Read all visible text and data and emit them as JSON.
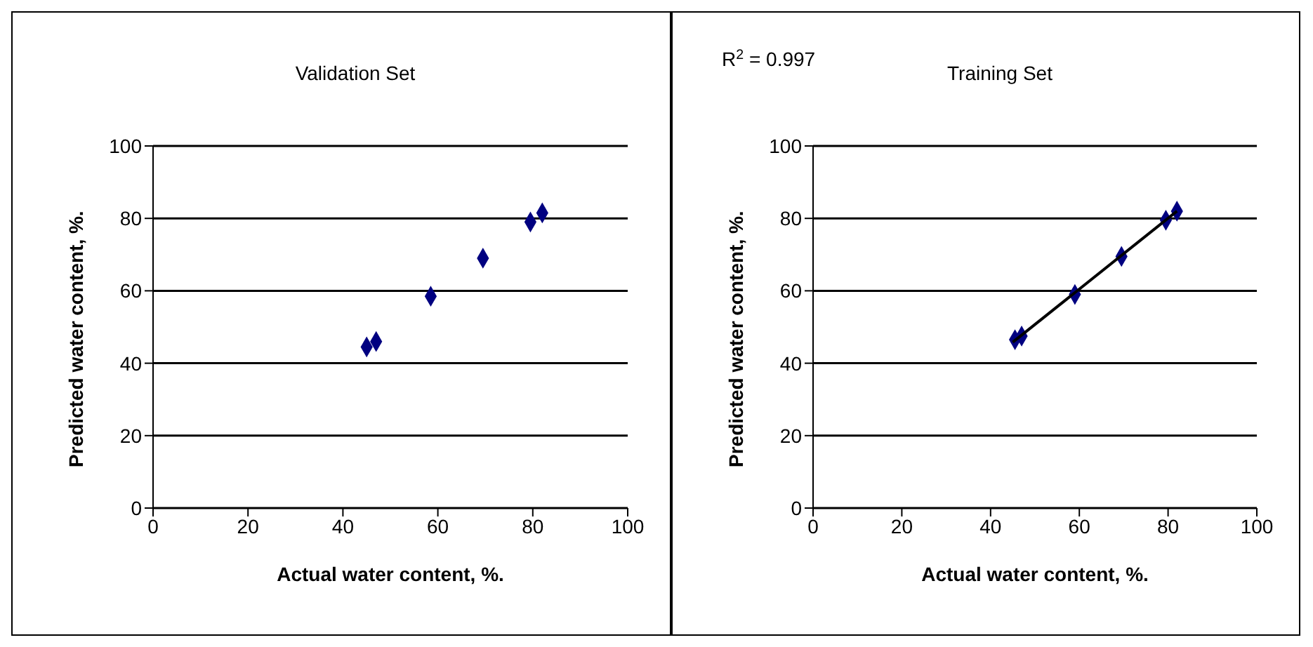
{
  "chart_data": [
    {
      "type": "scatter",
      "title": "Validation Set",
      "xlabel": "Actual water content, %.",
      "ylabel": "Predicted water content, %.",
      "xlim": [
        0,
        100
      ],
      "xticks": [
        0,
        20,
        40,
        60,
        80,
        100
      ],
      "ylim": [
        0,
        100
      ],
      "yticks": [
        0,
        20,
        40,
        60,
        80,
        100
      ],
      "grid": "y",
      "marker": "diamond",
      "series": [
        {
          "color": "#000080",
          "x": [
            45,
            47,
            58.5,
            69.5,
            79.5,
            82
          ],
          "values": [
            44.5,
            46,
            58.5,
            69,
            79,
            81.5
          ]
        }
      ]
    },
    {
      "type": "scatter",
      "title": "Training Set",
      "annotations": [
        "R$^{2}$ = 0.997"
      ],
      "xlabel": "Actual water content, %.",
      "ylabel": "Predicted water content, %.",
      "xlim": [
        0,
        100
      ],
      "xticks": [
        0,
        20,
        40,
        60,
        80,
        100
      ],
      "ylim": [
        0,
        100
      ],
      "yticks": [
        0,
        20,
        40,
        60,
        80,
        100
      ],
      "grid": "y",
      "series": [
        {
          "color": "#000080",
          "marker": "diamond",
          "x": [
            45.5,
            47,
            59,
            69.5,
            79.5,
            82
          ],
          "values": [
            46.5,
            47.5,
            59,
            69.5,
            79.5,
            82
          ]
        },
        {
          "type": "line",
          "marker": "none",
          "color": "#000000",
          "x": [
            45,
            82
          ],
          "values": [
            45.8,
            82
          ]
        }
      ]
    }
  ]
}
